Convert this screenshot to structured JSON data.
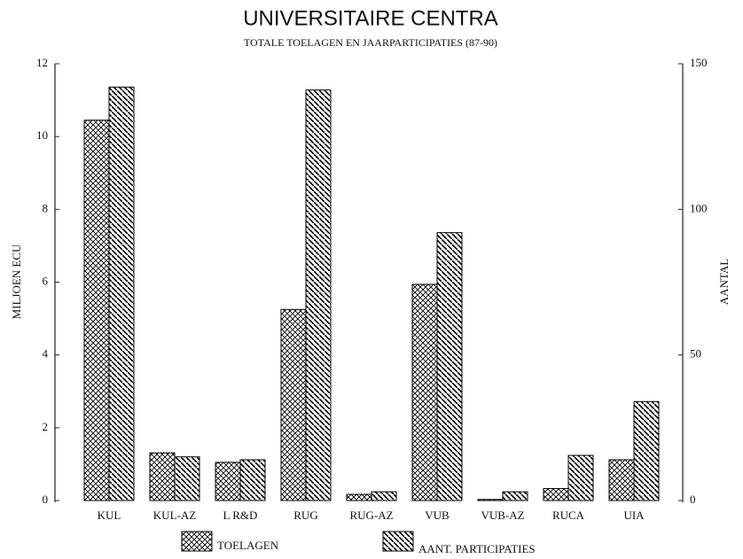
{
  "chart_data": {
    "type": "bar",
    "title": "UNIVERSITAIRE CENTRA",
    "subtitle": "TOTALE TOELAGEN EN JAARPARTICIPATIES (87-90)",
    "ylabel": "MILJOEN ECU",
    "y2label": "AANTAL",
    "categories": [
      "KUL",
      "KUL-AZ",
      "L R&D",
      "RUG",
      "RUG-AZ",
      "VUB",
      "VUB-AZ",
      "RUCA",
      "UIA"
    ],
    "series": [
      {
        "name": "TOELAGEN",
        "color": "#000000",
        "pattern": "crosshatch",
        "values": [
          10.45,
          1.31,
          1.05,
          5.25,
          0.17,
          5.94,
          0.03,
          0.33,
          1.12
        ]
      },
      {
        "name": "AANT. PARTICIPATIES",
        "color": "#000000",
        "pattern": "diagonal",
        "axis": "y2",
        "values": [
          142,
          15,
          14,
          141,
          3,
          92,
          3,
          15.5,
          34
        ]
      }
    ],
    "ylim": [
      0,
      12
    ],
    "yticks": [
      0,
      2,
      4,
      6,
      8,
      10,
      12
    ],
    "y2lim": [
      0,
      150
    ],
    "y2ticks": [
      0,
      50,
      100,
      150
    ],
    "legend": "bottom"
  }
}
